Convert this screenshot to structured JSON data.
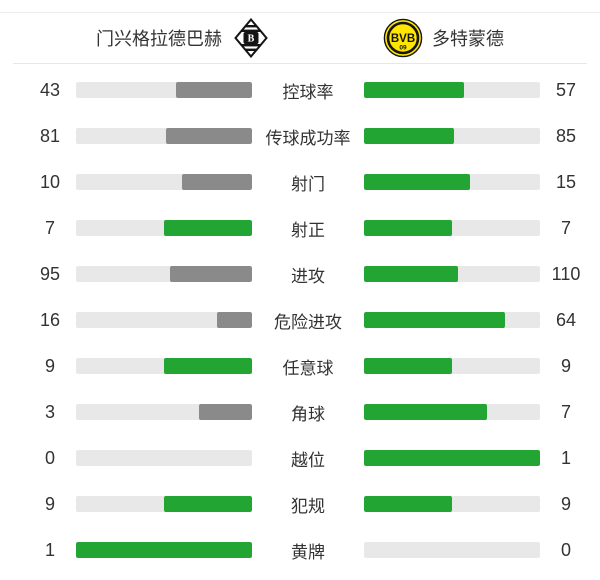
{
  "header": {
    "home_name": "门兴格拉德巴赫",
    "away_name": "多特蒙德",
    "home_badge_letter": "B",
    "away_badge_text": "BVB",
    "away_badge_sub": "09"
  },
  "colors": {
    "green": "#22a532",
    "gray": "#8a8a8a",
    "bar_track": "#e8e8e8",
    "text": "#333333",
    "divider": "#e7e7e7",
    "bvb_yellow": "#ffe600",
    "badge_black": "#141414",
    "background": "#ffffff"
  },
  "chart_data": {
    "type": "bar",
    "layout": "paired-horizontal-mirrored",
    "title": "",
    "legend_position": "top",
    "grid": false,
    "scale": "fill width = value / (home + away)",
    "categories": [
      "控球率",
      "传球成功率",
      "射门",
      "射正",
      "进攻",
      "危险进攻",
      "任意球",
      "角球",
      "越位",
      "犯规",
      "黄牌"
    ],
    "series": [
      {
        "name": "门兴格拉德巴赫",
        "side": "left",
        "values": [
          43,
          81,
          10,
          7,
          95,
          16,
          9,
          3,
          0,
          9,
          1
        ],
        "fill_colors": [
          "gray",
          "gray",
          "gray",
          "green",
          "gray",
          "gray",
          "green",
          "gray",
          "gray",
          "green",
          "green"
        ]
      },
      {
        "name": "多特蒙德",
        "side": "right",
        "values": [
          57,
          85,
          15,
          7,
          110,
          64,
          9,
          7,
          1,
          9,
          0
        ],
        "fill_colors": [
          "green",
          "green",
          "green",
          "green",
          "green",
          "green",
          "green",
          "green",
          "green",
          "green",
          "green"
        ]
      }
    ]
  }
}
